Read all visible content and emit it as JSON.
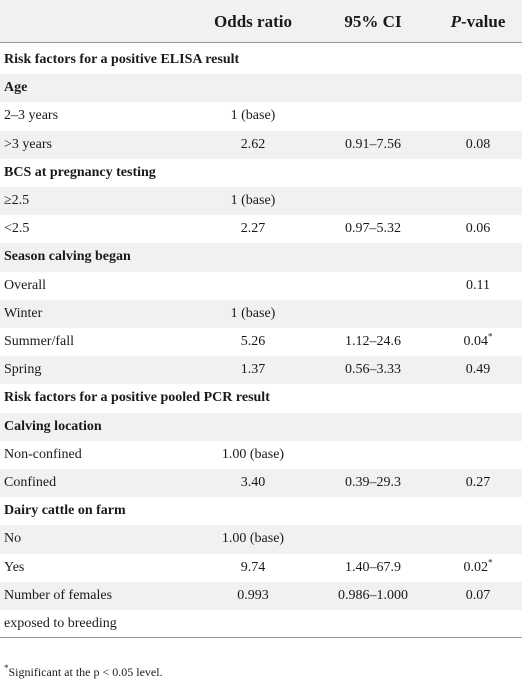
{
  "table": {
    "header": {
      "odds_ratio": "Odds ratio",
      "ci": "95% CI",
      "p_italic": "P",
      "p_rest": "-value"
    },
    "rows": [
      {
        "type": "section",
        "label": "Risk factors for a positive ELISA result"
      },
      {
        "type": "group",
        "label": "Age"
      },
      {
        "type": "data",
        "label": "2–3 years",
        "or": "1 (base)",
        "ci": "",
        "p": "",
        "sig": ""
      },
      {
        "type": "data",
        "label": ">3 years",
        "or": "2.62",
        "ci": "0.91–7.56",
        "p": "0.08",
        "sig": ""
      },
      {
        "type": "group",
        "label": "BCS at pregnancy testing"
      },
      {
        "type": "data",
        "label": "≥2.5",
        "or": "1 (base)",
        "ci": "",
        "p": "",
        "sig": ""
      },
      {
        "type": "data",
        "label": "<2.5",
        "or": "2.27",
        "ci": "0.97–5.32",
        "p": "0.06",
        "sig": ""
      },
      {
        "type": "group",
        "label": "Season calving began"
      },
      {
        "type": "data",
        "label": "Overall",
        "or": "",
        "ci": "",
        "p": "0.11",
        "sig": ""
      },
      {
        "type": "data",
        "label": "Winter",
        "or": "1 (base)",
        "ci": "",
        "p": "",
        "sig": ""
      },
      {
        "type": "data",
        "label": "Summer/fall",
        "or": "5.26",
        "ci": "1.12–24.6",
        "p": "0.04",
        "sig": "*"
      },
      {
        "type": "data",
        "label": "Spring",
        "or": "1.37",
        "ci": "0.56–3.33",
        "p": "0.49",
        "sig": ""
      },
      {
        "type": "section",
        "label": "Risk factors for a positive pooled PCR result"
      },
      {
        "type": "group",
        "label": "Calving location"
      },
      {
        "type": "data",
        "label": "Non-confined",
        "or": "1.00 (base)",
        "ci": "",
        "p": "",
        "sig": ""
      },
      {
        "type": "data",
        "label": "Confined",
        "or": "3.40",
        "ci": "0.39–29.3",
        "p": "0.27",
        "sig": ""
      },
      {
        "type": "group",
        "label": "Dairy cattle on farm"
      },
      {
        "type": "data",
        "label": "No",
        "or": "1.00 (base)",
        "ci": "",
        "p": "",
        "sig": ""
      },
      {
        "type": "data",
        "label": "Yes",
        "or": "9.74",
        "ci": "1.40–67.9",
        "p": "0.02",
        "sig": "*"
      },
      {
        "type": "data",
        "label": "Number of females",
        "or": "0.993",
        "ci": "0.986–1.000",
        "p": "0.07",
        "sig": ""
      },
      {
        "type": "data",
        "label": "exposed to breeding",
        "or": "",
        "ci": "",
        "p": "",
        "sig": ""
      }
    ],
    "footnote_mark": "*",
    "footnote_text": "Significant at the p < 0.05 level."
  }
}
